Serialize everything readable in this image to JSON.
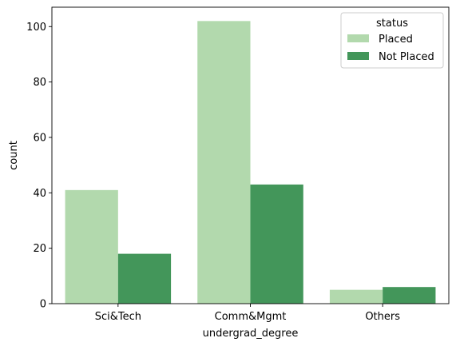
{
  "chart_data": {
    "type": "bar",
    "xlabel": "undergrad_degree",
    "ylabel": "count",
    "categories": [
      "Sci&Tech",
      "Comm&Mgmt",
      "Others"
    ],
    "series": [
      {
        "name": "Placed",
        "values": [
          41,
          102,
          5
        ],
        "color": "#b2d9ad"
      },
      {
        "name": "Not Placed",
        "values": [
          18,
          43,
          6
        ],
        "color": "#43965a"
      }
    ],
    "ylim": [
      0,
      107
    ],
    "yticks": [
      0,
      20,
      40,
      60,
      80,
      100
    ],
    "grid": false,
    "legend": {
      "title": "status",
      "placement": "top-right"
    }
  }
}
